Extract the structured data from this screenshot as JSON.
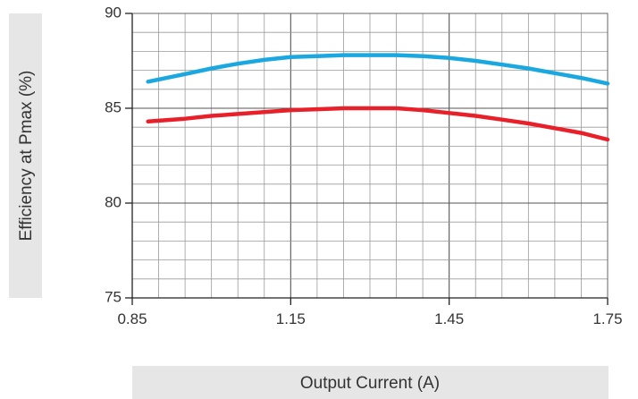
{
  "chart_data": {
    "type": "line",
    "xlabel": "Output Current (A)",
    "ylabel": "Efficiency at Pmax (%)",
    "xlim": [
      0.85,
      1.75
    ],
    "ylim": [
      75,
      90
    ],
    "x_ticks": [
      "0.85",
      "1.15",
      "1.45",
      "1.75"
    ],
    "y_ticks": [
      "75",
      "80",
      "85",
      "90"
    ],
    "grid": true,
    "series": [
      {
        "color": "#1ba8e0",
        "x": [
          0.88,
          0.95,
          1.0,
          1.05,
          1.1,
          1.15,
          1.2,
          1.25,
          1.3,
          1.35,
          1.4,
          1.45,
          1.5,
          1.55,
          1.6,
          1.65,
          1.7,
          1.75
        ],
        "y": [
          86.4,
          86.8,
          87.1,
          87.35,
          87.55,
          87.7,
          87.75,
          87.8,
          87.8,
          87.8,
          87.75,
          87.65,
          87.5,
          87.3,
          87.1,
          86.85,
          86.6,
          86.3
        ]
      },
      {
        "color": "#e8202a",
        "x": [
          0.88,
          0.95,
          1.0,
          1.05,
          1.1,
          1.15,
          1.2,
          1.25,
          1.3,
          1.35,
          1.4,
          1.45,
          1.5,
          1.55,
          1.6,
          1.65,
          1.7,
          1.75
        ],
        "y": [
          84.3,
          84.45,
          84.6,
          84.7,
          84.8,
          84.9,
          84.95,
          85.0,
          85.0,
          85.0,
          84.9,
          84.75,
          84.6,
          84.4,
          84.2,
          83.95,
          83.7,
          83.35
        ]
      }
    ]
  }
}
